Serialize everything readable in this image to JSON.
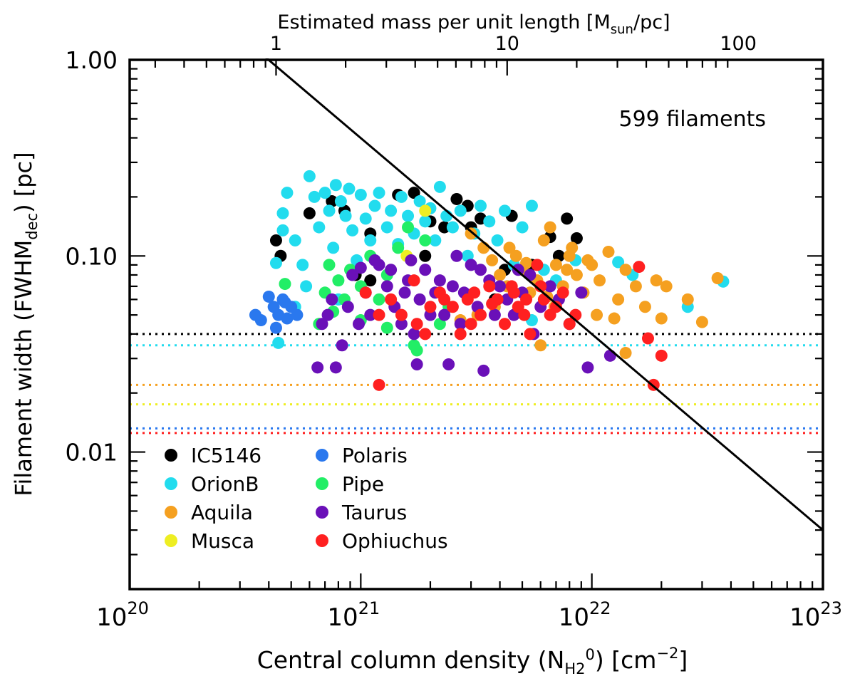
{
  "chart_data": {
    "type": "scatter",
    "title": "",
    "xlabel": "Central column density (N",
    "xlabel_sub": "H2",
    "xlabel_sup": "0",
    "xlabel_tail": ") [cm",
    "xlabel_unit_sup": "−2",
    "xlabel_end": "]",
    "ylabel": "Filament width (FWHM",
    "ylabel_sub": "dec",
    "ylabel_tail": ") [pc]",
    "top_axis_label": "Estimated mass per unit length [M",
    "top_axis_label_sub": "sun",
    "top_axis_label_tail": "/pc]",
    "top_axis_ticks": [
      {
        "value": 1,
        "label": "1",
        "nh2": 4.3e+20
      },
      {
        "value": 10,
        "label": "10",
        "nh2": 4.3e+21
      },
      {
        "value": 100,
        "label": "100",
        "nh2": 4.3e+22
      }
    ],
    "x_scale": "log",
    "y_scale": "log",
    "xlim": [
      1e+20,
      1e+23
    ],
    "ylim": [
      0.002,
      1.0
    ],
    "x_tick_labels": [
      {
        "value": 1e+20,
        "base": "10",
        "exp": "20"
      },
      {
        "value": 1e+21,
        "base": "10",
        "exp": "21"
      },
      {
        "value": 1e+22,
        "base": "10",
        "exp": "22"
      },
      {
        "value": 1e+23,
        "base": "10",
        "exp": "23"
      }
    ],
    "y_tick_labels": [
      {
        "value": 1.0,
        "label": "1.00"
      },
      {
        "value": 0.1,
        "label": "0.10"
      },
      {
        "value": 0.01,
        "label": "0.01"
      }
    ],
    "annotation": "599 filaments",
    "critical_line": {
      "x": [
        3.8e+20,
        1e+23
      ],
      "y": [
        1.05,
        0.004
      ],
      "color": "#000000"
    },
    "resolution_lines": [
      {
        "name": "IC5146",
        "y": 0.04,
        "color": "#000000"
      },
      {
        "name": "OrionB",
        "y": 0.035,
        "color": "#22dcee"
      },
      {
        "name": "Aquila",
        "y": 0.022,
        "color": "#f5a020"
      },
      {
        "name": "Musca",
        "y": 0.0175,
        "color": "#eeee22"
      },
      {
        "name": "Polaris",
        "y": 0.0132,
        "color": "#2a78ee"
      },
      {
        "name": "Ophiuchus",
        "y": 0.0125,
        "color": "#ff2020"
      }
    ],
    "legend": [
      {
        "name": "IC5146",
        "color": "#000000"
      },
      {
        "name": "OrionB",
        "color": "#22dcee"
      },
      {
        "name": "Aquila",
        "color": "#f5a020"
      },
      {
        "name": "Musca",
        "color": "#eeee22"
      },
      {
        "name": "Polaris",
        "color": "#2a78ee"
      },
      {
        "name": "Pipe",
        "color": "#22ee66"
      },
      {
        "name": "Taurus",
        "color": "#6a10b8"
      },
      {
        "name": "Ophiuchus",
        "color": "#ff2020"
      }
    ],
    "series": [
      {
        "name": "IC5146",
        "color": "#000000",
        "points": [
          [
            4.3e+20,
            0.12
          ],
          [
            4.5e+20,
            0.1
          ],
          [
            6e+20,
            0.165
          ],
          [
            7.5e+20,
            0.19
          ],
          [
            8.5e+20,
            0.17
          ],
          [
            9.5e+20,
            0.08
          ],
          [
            1.1e+21,
            0.13
          ],
          [
            1.45e+21,
            0.205
          ],
          [
            1.7e+21,
            0.21
          ],
          [
            2e+21,
            0.15
          ],
          [
            2.3e+21,
            0.14
          ],
          [
            2.6e+21,
            0.195
          ],
          [
            2.9e+21,
            0.18
          ],
          [
            3.3e+21,
            0.155
          ],
          [
            3.8e+21,
            0.06
          ],
          [
            4.5e+21,
            0.16
          ],
          [
            5.5e+21,
            0.09
          ],
          [
            6.6e+21,
            0.125
          ],
          [
            7.8e+21,
            0.155
          ],
          [
            8.6e+21,
            0.123
          ],
          [
            1.1e+21,
            0.075
          ],
          [
            1.9e+21,
            0.1
          ],
          [
            3e+21,
            0.14
          ],
          [
            4.2e+21,
            0.085
          ],
          [
            7.2e+21,
            0.1
          ]
        ]
      },
      {
        "name": "OrionB",
        "color": "#22dcee",
        "points": [
          [
            4.3e+20,
            0.092
          ],
          [
            4.6e+20,
            0.135
          ],
          [
            4.6e+20,
            0.165
          ],
          [
            4.8e+20,
            0.21
          ],
          [
            5.2e+20,
            0.12
          ],
          [
            5.6e+20,
            0.09
          ],
          [
            5.8e+20,
            0.07
          ],
          [
            6e+20,
            0.255
          ],
          [
            6.3e+20,
            0.2
          ],
          [
            6.6e+20,
            0.14
          ],
          [
            7e+20,
            0.21
          ],
          [
            7.3e+20,
            0.17
          ],
          [
            7.6e+20,
            0.11
          ],
          [
            7.8e+20,
            0.23
          ],
          [
            8.2e+20,
            0.19
          ],
          [
            8.6e+20,
            0.16
          ],
          [
            8.9e+20,
            0.22
          ],
          [
            9.2e+20,
            0.135
          ],
          [
            9.6e+20,
            0.095
          ],
          [
            1e+21,
            0.205
          ],
          [
            1.05e+21,
            0.155
          ],
          [
            1.1e+21,
            0.12
          ],
          [
            1.15e+21,
            0.18
          ],
          [
            1.2e+21,
            0.21
          ],
          [
            1.3e+21,
            0.14
          ],
          [
            1.35e+21,
            0.17
          ],
          [
            1.45e+21,
            0.115
          ],
          [
            1.5e+21,
            0.2
          ],
          [
            1.6e+21,
            0.16
          ],
          [
            1.7e+21,
            0.13
          ],
          [
            1.8e+21,
            0.19
          ],
          [
            1.9e+21,
            0.15
          ],
          [
            2e+21,
            0.175
          ],
          [
            2.1e+21,
            0.12
          ],
          [
            2.2e+21,
            0.225
          ],
          [
            2.35e+21,
            0.16
          ],
          [
            2.5e+21,
            0.14
          ],
          [
            2.7e+21,
            0.17
          ],
          [
            2.9e+21,
            0.1
          ],
          [
            3.1e+21,
            0.13
          ],
          [
            3.3e+21,
            0.18
          ],
          [
            3.6e+21,
            0.15
          ],
          [
            3.9e+21,
            0.12
          ],
          [
            4.2e+21,
            0.17
          ],
          [
            4.6e+21,
            0.09
          ],
          [
            5e+21,
            0.14
          ],
          [
            5.5e+21,
            0.18
          ],
          [
            6.2e+21,
            0.085
          ],
          [
            7e+21,
            0.075
          ],
          [
            8.5e+21,
            0.095
          ],
          [
            1.3e+22,
            0.093
          ],
          [
            1.5e+22,
            0.08
          ],
          [
            2.6e+22,
            0.055
          ],
          [
            3.7e+22,
            0.074
          ],
          [
            4.4e+20,
            0.036
          ],
          [
            5.2e+20,
            0.055
          ],
          [
            8e+20,
            0.06
          ],
          [
            5.5e+21,
            0.047
          ]
        ]
      },
      {
        "name": "Aquila",
        "color": "#f5a020",
        "points": [
          [
            3e+21,
            0.13
          ],
          [
            3.4e+21,
            0.11
          ],
          [
            3.7e+21,
            0.095
          ],
          [
            4e+21,
            0.08
          ],
          [
            4.3e+21,
            0.07
          ],
          [
            4.7e+21,
            0.1
          ],
          [
            5e+21,
            0.085
          ],
          [
            5.4e+21,
            0.065
          ],
          [
            5.8e+21,
            0.075
          ],
          [
            6.2e+21,
            0.12
          ],
          [
            6.6e+21,
            0.14
          ],
          [
            7e+21,
            0.09
          ],
          [
            7.5e+21,
            0.07
          ],
          [
            8e+21,
            0.1
          ],
          [
            8.6e+21,
            0.08
          ],
          [
            9.2e+21,
            0.065
          ],
          [
            1e+22,
            0.09
          ],
          [
            1.08e+22,
            0.075
          ],
          [
            1.18e+22,
            0.105
          ],
          [
            1.3e+22,
            0.06
          ],
          [
            1.4e+22,
            0.085
          ],
          [
            1.55e+22,
            0.07
          ],
          [
            1.7e+22,
            0.055
          ],
          [
            1.9e+22,
            0.075
          ],
          [
            2.1e+22,
            0.07
          ],
          [
            2e+22,
            0.048
          ],
          [
            2.6e+22,
            0.06
          ],
          [
            3e+22,
            0.046
          ],
          [
            3.5e+22,
            0.077
          ],
          [
            1.4e+22,
            0.032
          ],
          [
            6e+21,
            0.035
          ],
          [
            3.2e+21,
            0.05
          ],
          [
            4.4e+21,
            0.11
          ],
          [
            5.2e+21,
            0.092
          ],
          [
            6.9e+21,
            0.055
          ],
          [
            8.2e+21,
            0.11
          ],
          [
            9.6e+21,
            0.095
          ],
          [
            1.25e+22,
            0.048
          ],
          [
            1.05e+22,
            0.05
          ],
          [
            3.8e+21,
            0.055
          ],
          [
            2.7e+21,
            0.047
          ],
          [
            6.4e+21,
            0.062
          ],
          [
            7.8e+21,
            0.085
          ]
        ]
      },
      {
        "name": "Musca",
        "color": "#eeee22",
        "points": [
          [
            1.58e+21,
            0.1
          ],
          [
            1.9e+21,
            0.17
          ]
        ]
      },
      {
        "name": "Polaris",
        "color": "#2a78ee",
        "points": [
          [
            3.5e+20,
            0.05
          ],
          [
            3.7e+20,
            0.047
          ],
          [
            4e+20,
            0.062
          ],
          [
            4.2e+20,
            0.055
          ],
          [
            4.4e+20,
            0.05
          ],
          [
            4.6e+20,
            0.06
          ],
          [
            4.8e+20,
            0.048
          ],
          [
            5e+20,
            0.055
          ],
          [
            5.3e+20,
            0.05
          ],
          [
            4.3e+20,
            0.043
          ],
          [
            4.7e+20,
            0.058
          ]
        ]
      },
      {
        "name": "Pipe",
        "color": "#22ee66",
        "points": [
          [
            4.7e+20,
            0.072
          ],
          [
            6.6e+20,
            0.045
          ],
          [
            7e+20,
            0.065
          ],
          [
            7.3e+20,
            0.09
          ],
          [
            7.6e+20,
            0.052
          ],
          [
            8e+20,
            0.075
          ],
          [
            8.5e+20,
            0.06
          ],
          [
            9e+20,
            0.085
          ],
          [
            1e+21,
            0.07
          ],
          [
            1.1e+21,
            0.1
          ],
          [
            1.2e+21,
            0.06
          ],
          [
            1.3e+21,
            0.08
          ],
          [
            1.45e+21,
            0.11
          ],
          [
            1.6e+21,
            0.14
          ],
          [
            1.7e+21,
            0.035
          ],
          [
            1.75e+21,
            0.033
          ],
          [
            1.9e+21,
            0.12
          ],
          [
            2.2e+21,
            0.045
          ],
          [
            2.4e+21,
            0.055
          ],
          [
            1e+21,
            0.047
          ],
          [
            1.3e+21,
            0.043
          ]
        ]
      },
      {
        "name": "Taurus",
        "color": "#6a10b8",
        "points": [
          [
            6.5e+20,
            0.027
          ],
          [
            6.8e+20,
            0.045
          ],
          [
            7.2e+20,
            0.05
          ],
          [
            7.5e+20,
            0.06
          ],
          [
            7.8e+20,
            0.027
          ],
          [
            8.3e+20,
            0.035
          ],
          [
            8.8e+20,
            0.055
          ],
          [
            9.2e+20,
            0.08
          ],
          [
            9.8e+20,
            0.045
          ],
          [
            1.05e+21,
            0.065
          ],
          [
            1.1e+21,
            0.05
          ],
          [
            1.2e+21,
            0.09
          ],
          [
            1.3e+21,
            0.07
          ],
          [
            1.4e+21,
            0.055
          ],
          [
            1.5e+21,
            0.045
          ],
          [
            1.6e+21,
            0.075
          ],
          [
            1.7e+21,
            0.04
          ],
          [
            1.75e+21,
            0.028
          ],
          [
            1.8e+21,
            0.06
          ],
          [
            1.9e+21,
            0.085
          ],
          [
            2e+21,
            0.05
          ],
          [
            2.1e+21,
            0.065
          ],
          [
            2.2e+21,
            0.075
          ],
          [
            2.3e+21,
            0.05
          ],
          [
            2.4e+21,
            0.028
          ],
          [
            2.5e+21,
            0.07
          ],
          [
            2.7e+21,
            0.045
          ],
          [
            2.8e+21,
            0.065
          ],
          [
            3e+21,
            0.09
          ],
          [
            3.2e+21,
            0.055
          ],
          [
            3.4e+21,
            0.026
          ],
          [
            3.6e+21,
            0.075
          ],
          [
            3.8e+21,
            0.05
          ],
          [
            4e+21,
            0.07
          ],
          [
            4.3e+21,
            0.06
          ],
          [
            4.6e+21,
            0.05
          ],
          [
            5e+21,
            0.065
          ],
          [
            5.4e+21,
            0.08
          ],
          [
            6e+21,
            0.055
          ],
          [
            6.6e+21,
            0.07
          ],
          [
            7.2e+21,
            0.06
          ],
          [
            8e+21,
            0.045
          ],
          [
            9e+21,
            0.065
          ],
          [
            9.6e+21,
            0.027
          ],
          [
            1.2e+22,
            0.031
          ],
          [
            1e+21,
            0.087
          ],
          [
            1.15e+21,
            0.095
          ],
          [
            1.35e+21,
            0.085
          ],
          [
            1.55e+21,
            0.065
          ],
          [
            1.65e+21,
            0.095
          ],
          [
            2.6e+21,
            0.1
          ],
          [
            3.3e+21,
            0.085
          ],
          [
            4.8e+21,
            0.085
          ],
          [
            5.6e+21,
            0.04
          ]
        ]
      },
      {
        "name": "Ophiuchus",
        "color": "#ff2020",
        "points": [
          [
            1.05e+21,
            0.065
          ],
          [
            1.2e+21,
            0.022
          ],
          [
            1.35e+21,
            0.06
          ],
          [
            1.5e+21,
            0.05
          ],
          [
            1.7e+21,
            0.075
          ],
          [
            1.9e+21,
            0.04
          ],
          [
            2e+21,
            0.055
          ],
          [
            2.2e+21,
            0.065
          ],
          [
            2.5e+21,
            0.055
          ],
          [
            2.7e+21,
            0.04
          ],
          [
            2.9e+21,
            0.06
          ],
          [
            3.1e+21,
            0.065
          ],
          [
            3.3e+21,
            0.05
          ],
          [
            3.6e+21,
            0.07
          ],
          [
            3.9e+21,
            0.06
          ],
          [
            4.2e+21,
            0.045
          ],
          [
            4.5e+21,
            0.07
          ],
          [
            4.8e+21,
            0.055
          ],
          [
            5.1e+21,
            0.05
          ],
          [
            5.4e+21,
            0.04
          ],
          [
            5.8e+21,
            0.09
          ],
          [
            6.2e+21,
            0.06
          ],
          [
            6.6e+21,
            0.05
          ],
          [
            7e+21,
            0.055
          ],
          [
            7.5e+21,
            0.065
          ],
          [
            8e+21,
            0.045
          ],
          [
            8.5e+21,
            0.05
          ],
          [
            1.6e+22,
            0.088
          ],
          [
            1.75e+22,
            0.038
          ],
          [
            1.85e+22,
            0.022
          ],
          [
            2e+22,
            0.031
          ],
          [
            1.2e+21,
            0.05
          ],
          [
            1.75e+21,
            0.045
          ],
          [
            2.3e+21,
            0.06
          ],
          [
            3e+21,
            0.045
          ],
          [
            4.6e+21,
            0.065
          ],
          [
            5.2e+21,
            0.06
          ],
          [
            6e+21,
            0.07
          ],
          [
            3.7e+21,
            0.057
          ]
        ]
      }
    ]
  }
}
